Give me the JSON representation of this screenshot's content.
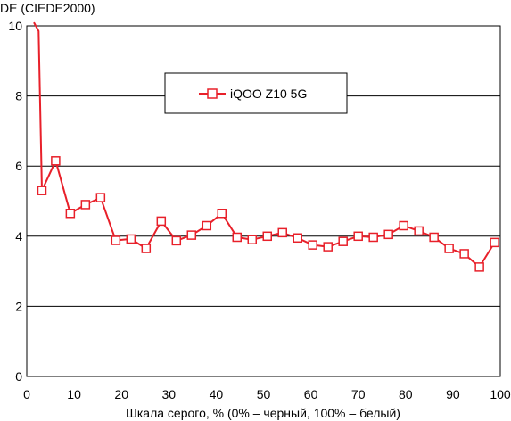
{
  "chart_data": {
    "type": "line",
    "title": "",
    "ylabel": "DE (CIEDE2000)",
    "xlabel": "Шкала серого, % (0% – черный, 100% – белый)",
    "xlim": [
      0,
      100
    ],
    "ylim": [
      0,
      10
    ],
    "xticks": [
      "0",
      "10",
      "20",
      "30",
      "40",
      "50",
      "60",
      "70",
      "80",
      "90",
      "100"
    ],
    "yticks": [
      "0",
      "2",
      "4",
      "6",
      "8",
      "10"
    ],
    "grid": "horizontal",
    "legend_position": "top-center",
    "series": [
      {
        "name": "iQOO Z10 5G",
        "color": "#e8202a",
        "marker": "hollow-square",
        "x": [
          1.5,
          2.5,
          3.2,
          6.1,
          9.2,
          12.4,
          15.6,
          18.8,
          22.0,
          25.2,
          28.4,
          31.6,
          34.8,
          38.0,
          41.2,
          44.4,
          47.6,
          50.8,
          54.0,
          57.2,
          60.4,
          63.6,
          66.8,
          70.0,
          73.2,
          76.4,
          79.6,
          82.8,
          86.0,
          89.2,
          92.4,
          95.6,
          98.8
        ],
        "y": [
          10.1,
          9.85,
          5.3,
          6.15,
          4.65,
          4.9,
          5.1,
          3.88,
          3.92,
          3.65,
          4.43,
          3.87,
          4.03,
          4.3,
          4.65,
          3.97,
          3.9,
          4.0,
          4.1,
          3.95,
          3.75,
          3.7,
          3.85,
          4.0,
          3.97,
          4.05,
          4.3,
          4.15,
          3.97,
          3.65,
          3.5,
          3.12,
          3.82
        ],
        "marked": [
          false,
          false,
          true,
          true,
          true,
          true,
          true,
          true,
          true,
          true,
          true,
          true,
          true,
          true,
          true,
          true,
          true,
          true,
          true,
          true,
          true,
          true,
          true,
          true,
          true,
          true,
          true,
          true,
          true,
          true,
          true,
          true,
          true
        ]
      }
    ]
  }
}
